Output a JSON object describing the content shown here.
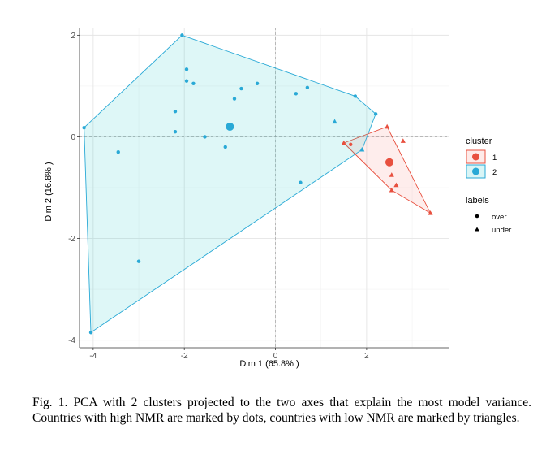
{
  "chart_data": {
    "type": "scatter",
    "title": "",
    "xlabel": "Dim 1 (65.8% )",
    "ylabel": "Dim 2 (16.8% )",
    "xlim": [
      -4.3,
      3.8
    ],
    "ylim": [
      -4.15,
      2.15
    ],
    "x_ticks": [
      -4,
      -2,
      0,
      2
    ],
    "y_ticks": [
      -4,
      -2,
      0,
      2
    ],
    "grid": true,
    "legend_placement": "right",
    "legend": {
      "cluster_title": "cluster",
      "cluster_items": [
        {
          "label": "1",
          "color": "#F8766D"
        },
        {
          "label": "2",
          "color": "#00BFC4"
        }
      ],
      "shape_title": "labels",
      "shape_items": [
        {
          "label": "over",
          "shape": "circle"
        },
        {
          "label": "under",
          "shape": "triangle"
        }
      ]
    },
    "series": [
      {
        "name": "1",
        "color": "#F8766D",
        "line_color": "#E8503F",
        "centroid": [
          2.5,
          -0.5
        ],
        "hull": [
          [
            1.5,
            -0.12
          ],
          [
            2.45,
            0.2
          ],
          [
            3.4,
            -1.5
          ],
          [
            2.55,
            -1.05
          ]
        ],
        "points": [
          {
            "x": 1.65,
            "y": -0.15,
            "shape": "circle"
          },
          {
            "x": 1.5,
            "y": -0.12,
            "shape": "triangle"
          },
          {
            "x": 2.45,
            "y": 0.2,
            "shape": "triangle"
          },
          {
            "x": 2.8,
            "y": -0.08,
            "shape": "triangle"
          },
          {
            "x": 2.55,
            "y": -0.75,
            "shape": "triangle"
          },
          {
            "x": 2.65,
            "y": -0.95,
            "shape": "triangle"
          },
          {
            "x": 2.55,
            "y": -1.05,
            "shape": "triangle"
          },
          {
            "x": 3.4,
            "y": -1.5,
            "shape": "triangle"
          }
        ]
      },
      {
        "name": "2",
        "color": "#00BFC4",
        "line_color": "#29A9D6",
        "centroid": [
          -1.0,
          0.2
        ],
        "hull": [
          [
            -2.05,
            2.0
          ],
          [
            1.75,
            0.8
          ],
          [
            2.2,
            0.45
          ],
          [
            1.9,
            -0.25
          ],
          [
            -4.05,
            -3.85
          ],
          [
            -4.2,
            0.18
          ]
        ],
        "points": [
          {
            "x": -2.05,
            "y": 2.0,
            "shape": "circle"
          },
          {
            "x": -1.95,
            "y": 1.33,
            "shape": "circle"
          },
          {
            "x": -1.95,
            "y": 1.1,
            "shape": "circle"
          },
          {
            "x": -1.8,
            "y": 1.05,
            "shape": "circle"
          },
          {
            "x": -0.4,
            "y": 1.05,
            "shape": "circle"
          },
          {
            "x": -0.75,
            "y": 0.95,
            "shape": "circle"
          },
          {
            "x": -0.9,
            "y": 0.75,
            "shape": "circle"
          },
          {
            "x": 0.45,
            "y": 0.85,
            "shape": "circle"
          },
          {
            "x": 0.7,
            "y": 0.97,
            "shape": "circle"
          },
          {
            "x": 1.75,
            "y": 0.8,
            "shape": "circle"
          },
          {
            "x": 2.2,
            "y": 0.45,
            "shape": "circle"
          },
          {
            "x": -2.2,
            "y": 0.5,
            "shape": "circle"
          },
          {
            "x": -2.2,
            "y": 0.1,
            "shape": "circle"
          },
          {
            "x": -1.55,
            "y": 0.0,
            "shape": "circle"
          },
          {
            "x": -1.1,
            "y": -0.2,
            "shape": "circle"
          },
          {
            "x": -3.45,
            "y": -0.3,
            "shape": "circle"
          },
          {
            "x": -4.2,
            "y": 0.18,
            "shape": "circle"
          },
          {
            "x": 0.55,
            "y": -0.9,
            "shape": "circle"
          },
          {
            "x": -3.0,
            "y": -2.45,
            "shape": "circle"
          },
          {
            "x": -4.05,
            "y": -3.85,
            "shape": "circle"
          },
          {
            "x": 1.3,
            "y": 0.3,
            "shape": "triangle"
          },
          {
            "x": 1.9,
            "y": -0.25,
            "shape": "triangle"
          }
        ]
      }
    ]
  },
  "caption": "Fig. 1.  PCA with 2 clusters projected to the two axes that explain the most model variance. Countries with high NMR are marked by dots, countries with low NMR are marked by triangles."
}
